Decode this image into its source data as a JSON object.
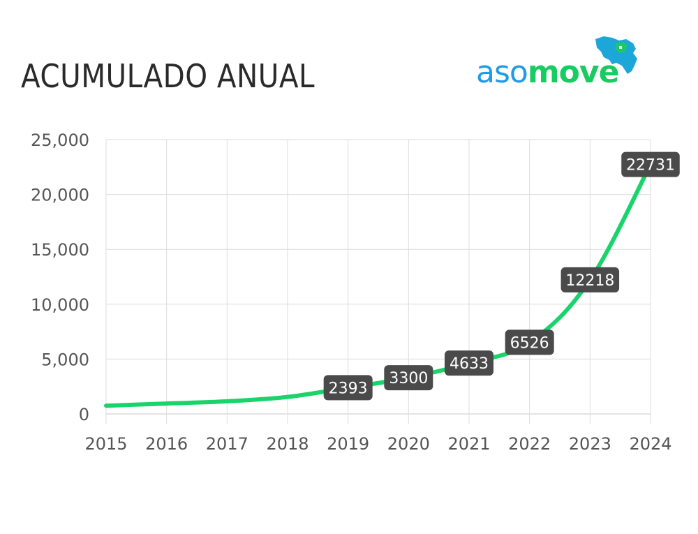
{
  "title": "ACUMULADO ANUAL",
  "logo": {
    "part1": "aso",
    "part2": "move",
    "color1": "#1e9be6",
    "color2": "#19cc62"
  },
  "chart_data": {
    "type": "line",
    "title": "ACUMULADO ANUAL",
    "xlabel": "",
    "ylabel": "",
    "x": [
      "2015",
      "2016",
      "2017",
      "2018",
      "2019",
      "2020",
      "2021",
      "2022",
      "2023",
      "2024"
    ],
    "series": [
      {
        "values": [
          750,
          950,
          1150,
          1550,
          2393,
          3300,
          4633,
          6526,
          12218,
          22731
        ],
        "color": "#19d46a"
      }
    ],
    "data_labels": [
      null,
      null,
      null,
      null,
      "2393",
      "3300",
      "4633",
      "6526",
      "12218",
      "22731"
    ],
    "y_ticks": [
      "0",
      "5,000",
      "10,000",
      "15,000",
      "20,000",
      "25,000"
    ],
    "ylim": [
      0,
      25000
    ],
    "grid": true,
    "legend": "none"
  }
}
